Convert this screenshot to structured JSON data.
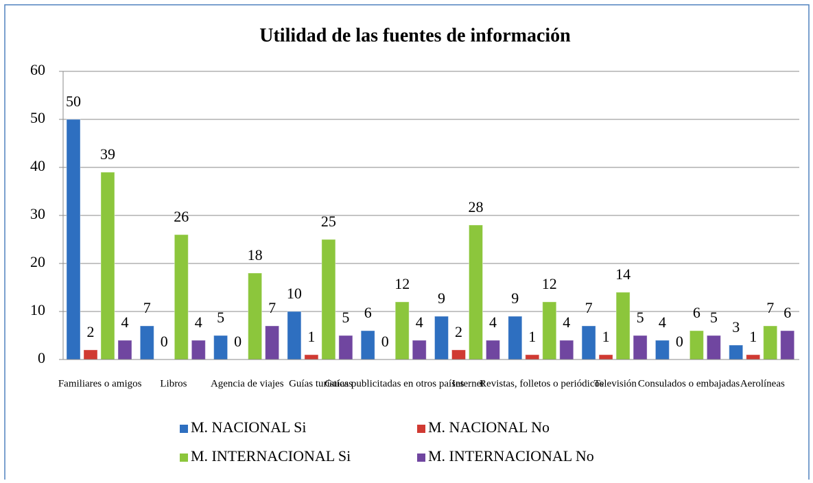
{
  "chart_data": {
    "type": "bar",
    "title": "Utilidad de las fuentes de información",
    "categories": [
      "Familiares o amigos",
      "Libros",
      "Agencia de viajes",
      "Guías turísticas",
      "Guías publicitadas en otros países",
      "Internet",
      "Revistas, folletos o periódicos",
      "Televisión",
      "Consulados o embajadas",
      "Aerolíneas"
    ],
    "series": [
      {
        "name": "M. NACIONAL Si",
        "color": "#2e6fc0",
        "values": [
          50,
          7,
          5,
          10,
          6,
          9,
          9,
          7,
          4,
          3
        ]
      },
      {
        "name": "M. NACIONAL No",
        "color": "#d03a32",
        "values": [
          2,
          0,
          0,
          1,
          0,
          2,
          1,
          1,
          0,
          1
        ]
      },
      {
        "name": "M. INTERNACIONAL Si",
        "color": "#8cc63c",
        "values": [
          39,
          26,
          18,
          25,
          12,
          28,
          12,
          14,
          6,
          7
        ]
      },
      {
        "name": "M. INTERNACIONAL No",
        "color": "#7046a0",
        "values": [
          4,
          4,
          7,
          5,
          4,
          4,
          4,
          5,
          5,
          6
        ]
      }
    ],
    "ylim": [
      0,
      60
    ],
    "yticks": [
      0,
      10,
      20,
      30,
      40,
      50,
      60
    ],
    "grid": true,
    "legend": "bottom"
  }
}
